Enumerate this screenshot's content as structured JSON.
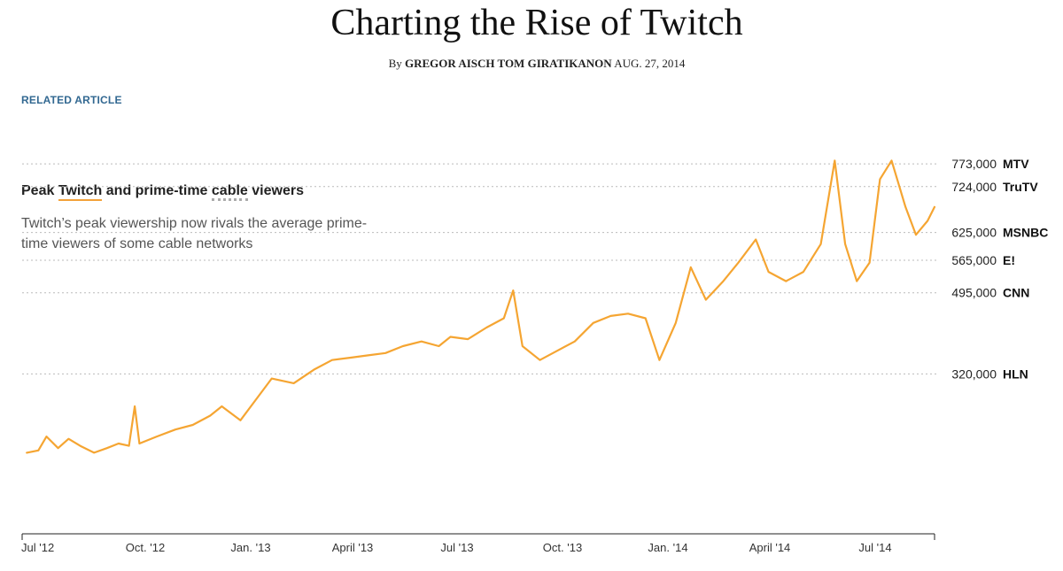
{
  "header": {
    "title": "Charting the Rise of Twitch",
    "by": "By",
    "authors": "GREGOR AISCH TOM GIRATIKANON",
    "date": "AUG. 27, 2014"
  },
  "related_link": "RELATED ARTICLE",
  "chart_header": {
    "title_part1": "Peak",
    "title_twitch": "Twitch",
    "title_part2": "and prime-time",
    "title_cable": "cable",
    "title_part3": "viewers",
    "subtitle": "Twitch’s peak viewership now rivals the average prime-time viewers of some cable networks"
  },
  "colors": {
    "series": "#f5a532",
    "gridline": "#bbbbbb",
    "text": "#333333"
  },
  "chart_data": {
    "type": "line",
    "title": "Peak Twitch and prime-time cable viewers",
    "subtitle": "Twitch’s peak viewership now rivals the average prime-time viewers of some cable networks",
    "xlabel": "",
    "ylabel": "",
    "x_ticks": [
      "Jul '12",
      "Oct. '12",
      "Jan. '13",
      "April '13",
      "Jul '13",
      "Oct. '13",
      "Jan. '14",
      "April '14",
      "Jul '14"
    ],
    "x_range": [
      "2012-07-01",
      "2014-08-26"
    ],
    "y_range": [
      0,
      840000
    ],
    "grid": "dotted reference lines",
    "reference_lines": [
      {
        "value": 773000,
        "label": "773,000",
        "name": "MTV"
      },
      {
        "value": 724000,
        "label": "724,000",
        "name": "TruTV"
      },
      {
        "value": 625000,
        "label": "625,000",
        "name": "MSNBC"
      },
      {
        "value": 565000,
        "label": "565,000",
        "name": "E!"
      },
      {
        "value": 495000,
        "label": "495,000",
        "name": "CNN"
      },
      {
        "value": 320000,
        "label": "320,000",
        "name": "HLN"
      }
    ],
    "series": [
      {
        "name": "Twitch",
        "points": [
          [
            "2012-07-05",
            150000
          ],
          [
            "2012-07-15",
            155000
          ],
          [
            "2012-07-22",
            185000
          ],
          [
            "2012-08-01",
            160000
          ],
          [
            "2012-08-10",
            180000
          ],
          [
            "2012-08-20",
            165000
          ],
          [
            "2012-09-01",
            150000
          ],
          [
            "2012-09-12",
            160000
          ],
          [
            "2012-09-22",
            170000
          ],
          [
            "2012-10-01",
            165000
          ],
          [
            "2012-10-06",
            250000
          ],
          [
            "2012-10-10",
            170000
          ],
          [
            "2012-10-25",
            185000
          ],
          [
            "2012-11-10",
            200000
          ],
          [
            "2012-11-25",
            210000
          ],
          [
            "2012-12-10",
            230000
          ],
          [
            "2012-12-20",
            250000
          ],
          [
            "2013-01-05",
            220000
          ],
          [
            "2013-01-20",
            270000
          ],
          [
            "2013-02-01",
            310000
          ],
          [
            "2013-02-20",
            300000
          ],
          [
            "2013-03-10",
            330000
          ],
          [
            "2013-03-25",
            350000
          ],
          [
            "2013-04-10",
            355000
          ],
          [
            "2013-04-25",
            360000
          ],
          [
            "2013-05-10",
            365000
          ],
          [
            "2013-05-25",
            380000
          ],
          [
            "2013-06-10",
            390000
          ],
          [
            "2013-06-25",
            380000
          ],
          [
            "2013-07-05",
            400000
          ],
          [
            "2013-07-20",
            395000
          ],
          [
            "2013-08-05",
            420000
          ],
          [
            "2013-08-20",
            440000
          ],
          [
            "2013-08-28",
            500000
          ],
          [
            "2013-09-05",
            380000
          ],
          [
            "2013-09-20",
            350000
          ],
          [
            "2013-10-05",
            370000
          ],
          [
            "2013-10-20",
            390000
          ],
          [
            "2013-11-05",
            430000
          ],
          [
            "2013-11-20",
            445000
          ],
          [
            "2013-12-05",
            450000
          ],
          [
            "2013-12-20",
            440000
          ],
          [
            "2014-01-01",
            350000
          ],
          [
            "2014-01-15",
            430000
          ],
          [
            "2014-01-28",
            550000
          ],
          [
            "2014-02-10",
            480000
          ],
          [
            "2014-02-25",
            520000
          ],
          [
            "2014-03-10",
            560000
          ],
          [
            "2014-03-25",
            610000
          ],
          [
            "2014-04-05",
            540000
          ],
          [
            "2014-04-20",
            520000
          ],
          [
            "2014-05-05",
            540000
          ],
          [
            "2014-05-20",
            600000
          ],
          [
            "2014-06-01",
            780000
          ],
          [
            "2014-06-10",
            600000
          ],
          [
            "2014-06-20",
            520000
          ],
          [
            "2014-07-01",
            560000
          ],
          [
            "2014-07-10",
            740000
          ],
          [
            "2014-07-20",
            780000
          ],
          [
            "2014-08-01",
            680000
          ],
          [
            "2014-08-10",
            620000
          ],
          [
            "2014-08-20",
            650000
          ],
          [
            "2014-08-26",
            680000
          ]
        ]
      }
    ]
  }
}
